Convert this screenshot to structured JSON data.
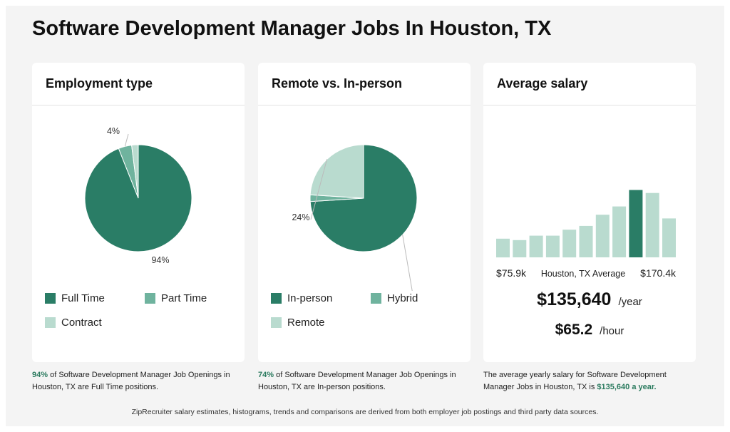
{
  "page_title": "Software Development Manager Jobs In Houston, TX",
  "colors": {
    "dark": "#2a7d66",
    "mid": "#6fb39e",
    "light": "#b9dbcf",
    "highlight_text": "#2a7a5e"
  },
  "employment": {
    "header": "Employment type",
    "legend": [
      "Full Time",
      "Part Time",
      "Contract"
    ],
    "caption_pct": "94%",
    "caption_rest": " of Software Development Manager Job Openings in Houston, TX are Full Time positions."
  },
  "remote": {
    "header": "Remote vs. In-person",
    "legend": [
      "In-person",
      "Hybrid",
      "Remote"
    ],
    "caption_pct": "74%",
    "caption_rest": " of Software Development Manager Job Openings in Houston, TX are In-person positions."
  },
  "salary": {
    "header": "Average salary",
    "min_label": "$75.9k",
    "avg_label": "Houston, TX Average",
    "max_label": "$170.4k",
    "yearly": "$135,640",
    "yearly_unit": "/year",
    "hourly": "$65.2",
    "hourly_unit": "/hour",
    "caption_pre": "The average yearly salary for Software Development Manager Jobs in Houston, TX is ",
    "caption_hl": "$135,640 a year."
  },
  "footer": "ZipRecruiter salary estimates, histograms, trends and comparisons are derived from both employer job postings and third party data sources.",
  "chart_data": [
    {
      "type": "pie",
      "labels": [
        "Full Time",
        "Part Time",
        "Contract"
      ],
      "values": [
        94,
        4,
        2
      ],
      "data_labels": [
        "94%",
        "4%",
        ""
      ]
    },
    {
      "type": "pie",
      "labels": [
        "In-person",
        "Hybrid",
        "Remote"
      ],
      "values": [
        74,
        2,
        24
      ],
      "data_labels": [
        "74%",
        "",
        "24%"
      ]
    },
    {
      "type": "bar",
      "xlabel": "",
      "ylabel": "",
      "values": [
        25,
        23,
        29,
        29,
        37,
        42,
        57,
        68,
        90,
        86,
        52
      ],
      "highlight_index": 8,
      "x_labels": [
        "$75.9k",
        "Houston, TX Average",
        "$170.4k"
      ],
      "ylim": [
        0,
        100
      ]
    }
  ]
}
